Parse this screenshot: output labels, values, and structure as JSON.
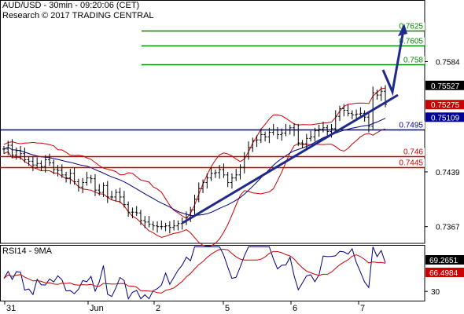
{
  "header": {
    "title": "AUD/USD - 30min - 09:20:06 (CET)",
    "copyright": "Research © 2017 TRADING CENTRAL"
  },
  "rsi_panel": {
    "label": "RSI14 - 9MA"
  },
  "colors": {
    "candles": "#000000",
    "bollinger": "#cc0000",
    "moving_average": "#000080",
    "trendline": "#1f2a8a",
    "support_line": "#000099",
    "resistance_lines": "#cc0000",
    "target_lines": "#008800",
    "rsi": "#000080",
    "rsi_ma": "#cc0000"
  },
  "chart_data": [
    {
      "type": "candlestick",
      "title": "AUD/USD - 30min",
      "x_tick_labels": [
        "31",
        "Jun",
        "2",
        "5",
        "6",
        "7"
      ],
      "y_tick_labels": [
        "0.7584",
        "0.7439",
        "0.7367"
      ],
      "price_axis_markers": [
        {
          "value": "0.75527",
          "style": "current"
        },
        {
          "value": "0.75275",
          "style": "red"
        },
        {
          "value": "0.75109",
          "style": "blue"
        }
      ],
      "levels": [
        {
          "label": "0.7625",
          "value": 0.7625,
          "kind": "target"
        },
        {
          "label": "0.7605",
          "value": 0.7605,
          "kind": "target"
        },
        {
          "label": "0.758",
          "value": 0.758,
          "kind": "target"
        },
        {
          "label": "0.7495",
          "value": 0.7495,
          "kind": "pivot"
        },
        {
          "label": "0.746",
          "value": 0.746,
          "kind": "support"
        },
        {
          "label": "0.7445",
          "value": 0.7445,
          "kind": "support"
        }
      ],
      "ylim": [
        0.7345,
        0.7665
      ],
      "close_series": [
        0.7469,
        0.7474,
        0.7461,
        0.7467,
        0.7463,
        0.7455,
        0.7453,
        0.7448,
        0.745,
        0.7446,
        0.7455,
        0.7451,
        0.7442,
        0.7441,
        0.7435,
        0.7431,
        0.7437,
        0.7426,
        0.7419,
        0.7425,
        0.7431,
        0.743,
        0.7415,
        0.7412,
        0.7421,
        0.7406,
        0.7406,
        0.7412,
        0.7406,
        0.7396,
        0.7386,
        0.7386,
        0.7385,
        0.7375,
        0.7373,
        0.737,
        0.7368,
        0.7367,
        0.7367,
        0.7368,
        0.7366,
        0.7368,
        0.7371,
        0.7373,
        0.7379,
        0.7389,
        0.7403,
        0.7417,
        0.7425,
        0.7431,
        0.7437,
        0.7438,
        0.7442,
        0.7435,
        0.7425,
        0.7431,
        0.7435,
        0.7445,
        0.7459,
        0.7471,
        0.748,
        0.7481,
        0.7488,
        0.7485,
        0.7491,
        0.7494,
        0.7488,
        0.749,
        0.7494,
        0.7497,
        0.7494,
        0.7477,
        0.7476,
        0.7483,
        0.7485,
        0.7493,
        0.7495,
        0.7497,
        0.7492,
        0.7496,
        0.7512,
        0.7522,
        0.752,
        0.7516,
        0.7514,
        0.7515,
        0.7516,
        0.7511,
        0.7499,
        0.7543,
        0.754,
        0.7545,
        0.7528
      ]
    },
    {
      "type": "line",
      "title": "RSI14 - 9MA",
      "x_tick_labels": [
        "31",
        "Jun",
        "2",
        "5",
        "6",
        "7"
      ],
      "y_tick_labels": [
        "30"
      ],
      "series": [
        {
          "name": "RSI14",
          "last_value": "69.2651"
        },
        {
          "name": "9MA",
          "last_value": "66.4984"
        }
      ],
      "ylim": [
        20,
        80
      ]
    }
  ]
}
